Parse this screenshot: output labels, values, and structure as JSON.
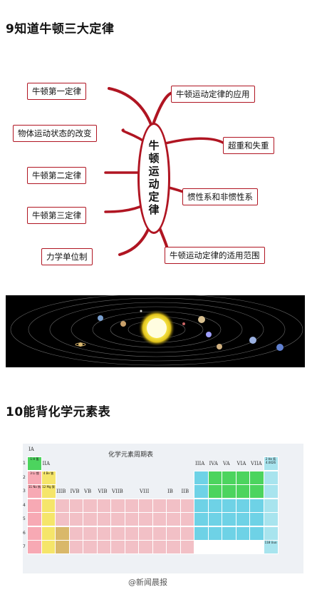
{
  "section1": {
    "title": "9知道牛顿三大定律"
  },
  "mindmap": {
    "center": "牛顿运动定律",
    "left_nodes": [
      "牛顿第一定律",
      "物体运动状态的改变",
      "牛顿第二定律",
      "牛顿第三定律",
      "力学单位制"
    ],
    "right_nodes": [
      "牛顿运动定律的应用",
      "超重和失重",
      "惯性系和非惯性系",
      "牛顿运动定律的适用范围"
    ]
  },
  "section2": {
    "title": "10能背化学元素表"
  },
  "periodic_table": {
    "title": "化学元素周期表",
    "groups": [
      "IA",
      "IIA",
      "IIIB",
      "IVB",
      "VB",
      "VIB",
      "VIIB",
      "VIII",
      "IB",
      "IIB",
      "IIIA",
      "IVA",
      "VA",
      "VIA",
      "VIIA"
    ],
    "periods": [
      "1",
      "2",
      "3",
      "4",
      "5",
      "6",
      "7"
    ],
    "colors": {
      "alkali": "#f7a9b4",
      "alkaline": "#f5e56a",
      "transition": "#f2c0c6",
      "metalloid": "#6ed2e6",
      "nonmetal": "#4cd45e",
      "noble": "#a8e4ee",
      "lanthanide": "#d9b86a",
      "unknown": "#ffffff",
      "hydrogen": "#4cd45e"
    },
    "sample_cells": {
      "H": "1 H 氢",
      "He": "2 He 氦 4.0026",
      "Li": "3 Li 锂",
      "Be": "4 Be 铍",
      "Na": "11 Na 钠",
      "Mg": "12 Mg 镁",
      "Uuo": "118 Uuo"
    }
  },
  "watermark": "@新闻晨报"
}
